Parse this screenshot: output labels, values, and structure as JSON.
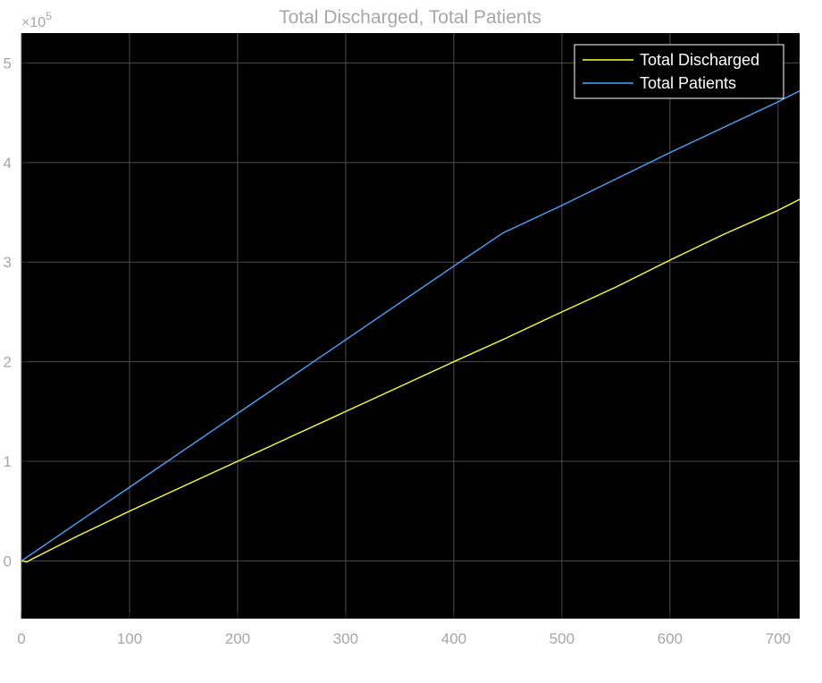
{
  "chart_data": {
    "type": "line",
    "title": "Total Discharged, Total Patients",
    "xlabel": "",
    "ylabel": "",
    "xlim": [
      0,
      720
    ],
    "ylim": [
      -0.58,
      5.3
    ],
    "x_ticks": [
      0,
      100,
      200,
      300,
      400,
      500,
      600,
      700
    ],
    "y_ticks": [
      0,
      1,
      2,
      3,
      4,
      5
    ],
    "y_multiplier": {
      "base": "×10",
      "exponent": "5"
    },
    "grid": true,
    "legend_position": "top-right",
    "colors": {
      "background": "#000000",
      "grid": "#4d4d4d",
      "tick": "#a6a6a6"
    },
    "series": [
      {
        "name": "Total Discharged",
        "color": "#ffff33",
        "x": [
          0,
          5,
          10,
          50,
          100,
          150,
          200,
          250,
          300,
          350,
          400,
          445,
          500,
          550,
          600,
          650,
          700,
          720
        ],
        "y": [
          0,
          -0.01,
          0.02,
          0.24,
          0.5,
          0.75,
          1.0,
          1.25,
          1.5,
          1.75,
          2.0,
          2.22,
          2.5,
          2.75,
          3.02,
          3.28,
          3.52,
          3.63
        ]
      },
      {
        "name": "Total Patients",
        "color": "#4aa5ff",
        "x": [
          0,
          50,
          100,
          200,
          300,
          400,
          445,
          500,
          600,
          700,
          720
        ],
        "y": [
          0,
          0.37,
          0.74,
          1.48,
          2.22,
          2.96,
          3.29,
          3.57,
          4.1,
          4.61,
          4.72
        ]
      }
    ]
  }
}
